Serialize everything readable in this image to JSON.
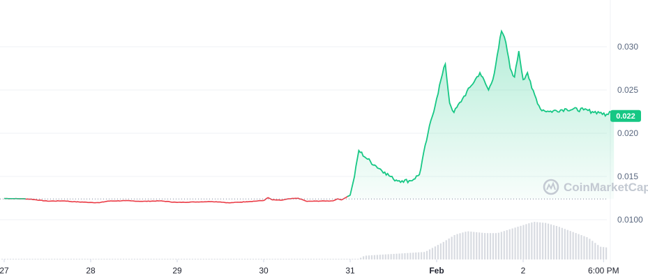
{
  "chart_data": {
    "type": "area",
    "title": "",
    "xlabel": "",
    "ylabel": "",
    "x_ticks": [
      "27",
      "28",
      "29",
      "30",
      "31",
      "Feb",
      "2",
      "6:00 PM"
    ],
    "y_ticks": [
      "0.0100",
      "0.015",
      "0.020",
      "0.025",
      "0.030"
    ],
    "ylim": [
      0.0085,
      0.0335
    ],
    "baseline": 0.0124,
    "current_price_label": "0.022",
    "current_price": 0.022,
    "up_color": "#16c784",
    "down_color": "#ea3943",
    "grid": true,
    "watermark": "CoinMarketCap",
    "series": [
      {
        "points": [
          [
            27.0,
            0.01245
          ],
          [
            27.2,
            0.01242
          ],
          [
            27.3,
            0.01238
          ],
          [
            27.5,
            0.01215
          ],
          [
            27.7,
            0.01218
          ],
          [
            27.8,
            0.01208
          ],
          [
            28.0,
            0.012
          ],
          [
            28.1,
            0.01197
          ],
          [
            28.2,
            0.01215
          ],
          [
            28.4,
            0.0122
          ],
          [
            28.6,
            0.01212
          ],
          [
            28.8,
            0.01218
          ],
          [
            29.0,
            0.012
          ],
          [
            29.2,
            0.01205
          ],
          [
            29.4,
            0.0121
          ],
          [
            29.5,
            0.01205
          ],
          [
            29.6,
            0.01195
          ],
          [
            29.8,
            0.01208
          ],
          [
            30.0,
            0.01222
          ],
          [
            30.05,
            0.01255
          ],
          [
            30.1,
            0.0123
          ],
          [
            30.2,
            0.01225
          ],
          [
            30.3,
            0.01242
          ],
          [
            30.4,
            0.01248
          ],
          [
            30.5,
            0.01212
          ],
          [
            30.6,
            0.01215
          ],
          [
            30.8,
            0.01218
          ],
          [
            30.85,
            0.0124
          ],
          [
            30.9,
            0.0123
          ],
          [
            31.0,
            0.01285
          ],
          [
            31.05,
            0.015
          ],
          [
            31.1,
            0.018
          ],
          [
            31.2,
            0.017
          ],
          [
            31.3,
            0.0162
          ],
          [
            31.4,
            0.0155
          ],
          [
            31.5,
            0.0147
          ],
          [
            31.6,
            0.0145
          ],
          [
            31.7,
            0.0145
          ],
          [
            31.8,
            0.0152
          ],
          [
            31.9,
            0.02
          ],
          [
            32.0,
            0.024
          ],
          [
            32.05,
            0.0262
          ],
          [
            32.1,
            0.028
          ],
          [
            32.15,
            0.0235
          ],
          [
            32.2,
            0.0224
          ],
          [
            32.3,
            0.024
          ],
          [
            32.4,
            0.0255
          ],
          [
            32.5,
            0.027
          ],
          [
            32.6,
            0.025
          ],
          [
            32.65,
            0.0262
          ],
          [
            32.7,
            0.029
          ],
          [
            32.75,
            0.0318
          ],
          [
            32.8,
            0.0305
          ],
          [
            32.85,
            0.0275
          ],
          [
            32.9,
            0.0265
          ],
          [
            32.95,
            0.0295
          ],
          [
            33.0,
            0.0262
          ],
          [
            33.05,
            0.027
          ],
          [
            33.1,
            0.0252
          ],
          [
            33.2,
            0.0228
          ],
          [
            33.3,
            0.0225
          ],
          [
            33.5,
            0.0228
          ],
          [
            33.7,
            0.0227
          ],
          [
            33.8,
            0.0225
          ],
          [
            33.9,
            0.0224
          ],
          [
            33.95,
            0.022
          ],
          [
            34.0,
            0.0225
          ],
          [
            34.05,
            0.022
          ]
        ]
      }
    ],
    "volume": {
      "bars": 220,
      "shape": [
        [
          0.0,
          0.015
        ],
        [
          0.59,
          0.015
        ],
        [
          0.6,
          0.1
        ],
        [
          0.7,
          0.2
        ],
        [
          0.73,
          0.46
        ],
        [
          0.75,
          0.66
        ],
        [
          0.77,
          0.75
        ],
        [
          0.8,
          0.7
        ],
        [
          0.82,
          0.7
        ],
        [
          0.84,
          0.8
        ],
        [
          0.86,
          0.9
        ],
        [
          0.88,
          1.0
        ],
        [
          0.9,
          0.97
        ],
        [
          0.92,
          0.88
        ],
        [
          0.95,
          0.7
        ],
        [
          0.97,
          0.58
        ],
        [
          0.99,
          0.34
        ],
        [
          1.0,
          0.32
        ]
      ],
      "color": "#d8dbe1"
    }
  }
}
